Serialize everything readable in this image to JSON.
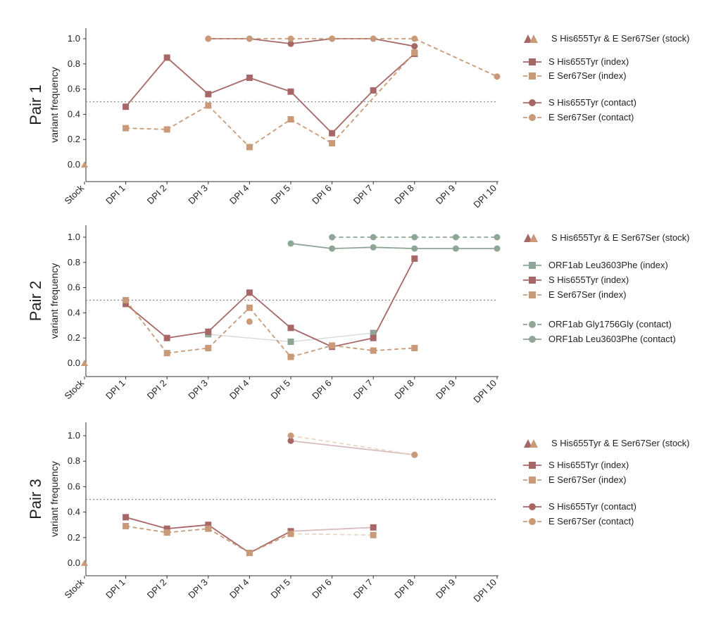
{
  "colors": {
    "s_variant": "#a86767",
    "e_variant": "#c99a78",
    "orf1ab": "#8fa595",
    "faded_s": "#d9bcbc",
    "faded_e": "#e8d7c6",
    "faded_orf": "#d8dcd8"
  },
  "chart_data": [
    {
      "type": "line",
      "panel_label": "Pair 1",
      "ylabel": "variant frequency",
      "categories": [
        "Stock",
        "DPI 1",
        "DPI 2",
        "DPI 3",
        "DPI 4",
        "DPI 5",
        "DPI 6",
        "DPI 7",
        "DPI 8",
        "DPI 9",
        "DPI 10"
      ],
      "yticks": [
        "0.0",
        "0.2",
        "0.4",
        "0.6",
        "0.8",
        "1.0"
      ],
      "ylim": [
        -0.08,
        1.1
      ],
      "threshold": 0.5,
      "stock": {
        "S His655Tyr": 0.0,
        "E Ser67Ser": 0.0
      },
      "series": [
        {
          "name": "S His655Tyr (index)",
          "color_key": "s_variant",
          "marker": "square",
          "dash": "solid",
          "values": [
            null,
            0.46,
            0.85,
            0.56,
            0.69,
            0.58,
            0.25,
            0.59,
            0.88,
            null,
            null
          ]
        },
        {
          "name": "E Ser67Ser (index)",
          "color_key": "e_variant",
          "marker": "square",
          "dash": "dashed",
          "values": [
            null,
            0.29,
            0.28,
            0.47,
            0.14,
            0.36,
            0.17,
            null,
            0.89,
            null,
            null
          ]
        },
        {
          "name": "S His655Tyr (contact)",
          "color_key": "s_variant",
          "marker": "circle",
          "dash": "solid",
          "values": [
            null,
            null,
            null,
            1.0,
            1.0,
            0.96,
            1.0,
            1.0,
            0.94,
            null,
            null
          ]
        },
        {
          "name": "E Ser67Ser (contact)",
          "color_key": "e_variant",
          "marker": "circle",
          "dash": "dashed",
          "values": [
            null,
            null,
            null,
            1.0,
            1.0,
            1.0,
            1.0,
            1.0,
            1.0,
            null,
            0.7
          ]
        }
      ],
      "faded_connectors": [
        {
          "color_key": "faded_e",
          "dash": "dashed",
          "from": [
            8,
            1.0
          ],
          "to": [
            10,
            0.7
          ]
        }
      ],
      "legend": [
        {
          "label": "S His655Tyr & E Ser67Ser (stock)",
          "kind": "stock"
        },
        {
          "label": "S His655Tyr (index)",
          "color_key": "s_variant",
          "marker": "square",
          "dash": "solid"
        },
        {
          "label": "E Ser67Ser (index)",
          "color_key": "e_variant",
          "marker": "square",
          "dash": "dashed"
        },
        {
          "label": "S His655Tyr (contact)",
          "color_key": "s_variant",
          "marker": "circle",
          "dash": "solid"
        },
        {
          "label": "E Ser67Ser (contact)",
          "color_key": "e_variant",
          "marker": "circle",
          "dash": "dashed"
        }
      ]
    },
    {
      "type": "line",
      "panel_label": "Pair 2",
      "ylabel": "variant frequency",
      "categories": [
        "Stock",
        "DPI 1",
        "DPI 2",
        "DPI 3",
        "DPI 4",
        "DPI 5",
        "DPI 6",
        "DPI 7",
        "DPI 8",
        "DPI 9",
        "DPI 10"
      ],
      "yticks": [
        "0.0",
        "0.2",
        "0.4",
        "0.6",
        "0.8",
        "1.0"
      ],
      "ylim": [
        -0.08,
        1.1
      ],
      "threshold": 0.5,
      "stock": {
        "S His655Tyr": 0.0,
        "E Ser67Ser": 0.0
      },
      "series": [
        {
          "name": "ORF1ab Leu3603Phe (index)",
          "color_key": "orf1ab",
          "marker": "square",
          "dash": "solid",
          "no_line": true,
          "values": [
            null,
            null,
            null,
            0.23,
            null,
            0.17,
            null,
            0.24,
            null,
            null,
            null
          ]
        },
        {
          "name": "S His655Tyr (index)",
          "color_key": "s_variant",
          "marker": "square",
          "dash": "solid",
          "values": [
            null,
            0.47,
            0.2,
            0.25,
            0.56,
            0.28,
            0.13,
            0.2,
            0.83,
            null,
            null
          ]
        },
        {
          "name": "E Ser67Ser (index)",
          "color_key": "e_variant",
          "marker": "square",
          "dash": "dashed",
          "values": [
            null,
            0.5,
            0.08,
            0.12,
            0.44,
            0.05,
            0.14,
            0.1,
            0.12,
            null,
            null
          ]
        },
        {
          "name": "E Ser67Ser (contact)",
          "color_key": "e_variant",
          "marker": "circle",
          "dash": "none",
          "no_line": true,
          "values": [
            null,
            null,
            null,
            null,
            0.33,
            null,
            null,
            null,
            null,
            null,
            null
          ]
        },
        {
          "name": "ORF1ab Gly1756Gly (contact)",
          "color_key": "orf1ab",
          "marker": "circle",
          "dash": "dashed",
          "values": [
            null,
            null,
            null,
            null,
            null,
            null,
            1.0,
            1.0,
            1.0,
            1.0,
            1.0
          ]
        },
        {
          "name": "ORF1ab Leu3603Phe (contact)",
          "color_key": "orf1ab",
          "marker": "circle",
          "dash": "solid",
          "values": [
            null,
            null,
            null,
            null,
            null,
            0.95,
            0.91,
            0.92,
            0.91,
            0.91,
            0.91
          ]
        }
      ],
      "faded_connectors": [
        {
          "color_key": "faded_orf",
          "dash": "solid",
          "from": [
            3,
            0.23
          ],
          "to": [
            5,
            0.17
          ]
        },
        {
          "color_key": "faded_orf",
          "dash": "solid",
          "from": [
            5,
            0.17
          ],
          "to": [
            7,
            0.24
          ]
        }
      ],
      "legend": [
        {
          "label": "S His655Tyr & E Ser67Ser (stock)",
          "kind": "stock"
        },
        {
          "label": "ORF1ab Leu3603Phe (index)",
          "color_key": "orf1ab",
          "marker": "square",
          "dash": "solid"
        },
        {
          "label": "S His655Tyr (index)",
          "color_key": "s_variant",
          "marker": "square",
          "dash": "solid"
        },
        {
          "label": "E Ser67Ser (index)",
          "color_key": "e_variant",
          "marker": "square",
          "dash": "dashed"
        },
        {
          "label": "ORF1ab Gly1756Gly (contact)",
          "color_key": "orf1ab",
          "marker": "circle",
          "dash": "dashed"
        },
        {
          "label": "ORF1ab Leu3603Phe (contact)",
          "color_key": "orf1ab",
          "marker": "circle",
          "dash": "solid"
        }
      ]
    },
    {
      "type": "line",
      "panel_label": "Pair 3",
      "ylabel": "variant frequency",
      "categories": [
        "Stock",
        "DPI 1",
        "DPI 2",
        "DPI 3",
        "DPI 4",
        "DPI 5",
        "DPI 6",
        "DPI 7",
        "DPI 8",
        "DPI 9",
        "DPI 10"
      ],
      "yticks": [
        "0.0",
        "0.2",
        "0.4",
        "0.6",
        "0.8",
        "1.0"
      ],
      "ylim": [
        -0.08,
        1.1
      ],
      "threshold": 0.5,
      "stock": {
        "S His655Tyr": 0.0,
        "E Ser67Ser": 0.0
      },
      "series": [
        {
          "name": "S His655Tyr (index)",
          "color_key": "s_variant",
          "marker": "square",
          "dash": "solid",
          "values": [
            null,
            0.36,
            0.27,
            0.3,
            0.08,
            0.25,
            null,
            0.28,
            null,
            null,
            null
          ]
        },
        {
          "name": "E Ser67Ser (index)",
          "color_key": "e_variant",
          "marker": "square",
          "dash": "dashed",
          "values": [
            null,
            0.29,
            0.24,
            0.27,
            0.08,
            0.23,
            null,
            0.22,
            null,
            null,
            null
          ]
        },
        {
          "name": "S His655Tyr (contact)",
          "color_key": "s_variant",
          "marker": "circle",
          "dash": "solid",
          "values": [
            null,
            null,
            null,
            null,
            null,
            0.96,
            null,
            null,
            0.85,
            null,
            null
          ]
        },
        {
          "name": "E Ser67Ser (contact)",
          "color_key": "e_variant",
          "marker": "circle",
          "dash": "dashed",
          "values": [
            null,
            null,
            null,
            null,
            null,
            1.0,
            null,
            null,
            0.85,
            null,
            null
          ]
        }
      ],
      "faded_segments_from_index": 5,
      "legend": [
        {
          "label": "S His655Tyr & E Ser67Ser (stock)",
          "kind": "stock"
        },
        {
          "label": "S His655Tyr (index)",
          "color_key": "s_variant",
          "marker": "square",
          "dash": "solid"
        },
        {
          "label": "E Ser67Ser (index)",
          "color_key": "e_variant",
          "marker": "square",
          "dash": "dashed"
        },
        {
          "label": "S His655Tyr (contact)",
          "color_key": "s_variant",
          "marker": "circle",
          "dash": "solid"
        },
        {
          "label": "E Ser67Ser (contact)",
          "color_key": "e_variant",
          "marker": "circle",
          "dash": "dashed"
        }
      ]
    }
  ]
}
